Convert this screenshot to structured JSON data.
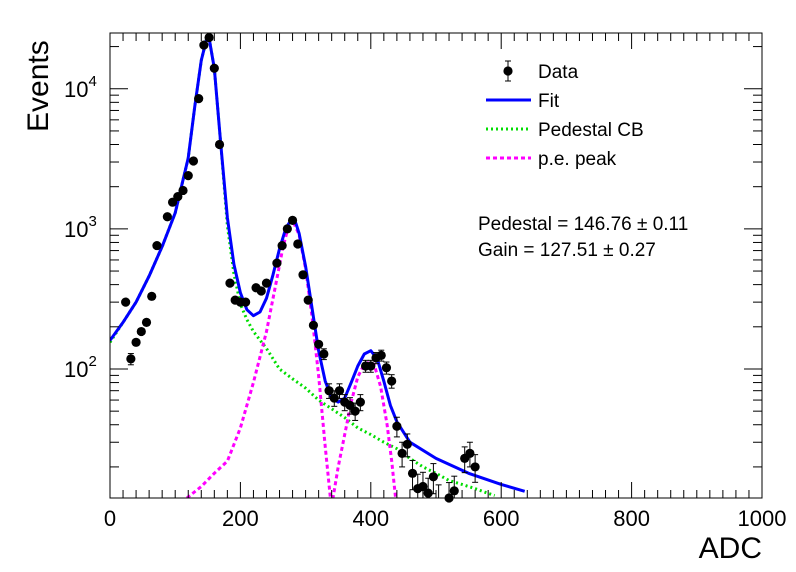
{
  "chart_data": {
    "type": "line",
    "xlabel": "ADC",
    "ylabel": "Events",
    "xlim": [
      0,
      1000
    ],
    "ylim": [
      12,
      25000
    ],
    "y_scale": "log",
    "x_ticks": [
      {
        "value": 0,
        "label": "0"
      },
      {
        "value": 200,
        "label": "200"
      },
      {
        "value": 400,
        "label": "400"
      },
      {
        "value": 600,
        "label": "600"
      },
      {
        "value": 800,
        "label": "800"
      },
      {
        "value": 1000,
        "label": "1000"
      }
    ],
    "y_ticks": [
      {
        "value": 100,
        "base": "10",
        "exp": "2"
      },
      {
        "value": 1000,
        "base": "10",
        "exp": "3"
      },
      {
        "value": 10000,
        "base": "10",
        "exp": "4"
      }
    ],
    "grid": false,
    "legend_position": "top-right",
    "legend": [
      {
        "label": "Data",
        "style": "marker",
        "color": "#000000"
      },
      {
        "label": "Fit",
        "style": "solid",
        "color": "#0000ff"
      },
      {
        "label": "Pedestal CB",
        "style": "dotted",
        "color": "#00dd00"
      },
      {
        "label": "p.e. peak",
        "style": "dashed",
        "color": "#ff00ff"
      }
    ],
    "annotations": [
      "Pedestal = 146.76 ± 0.11",
      "Gain = 127.51 ± 0.27"
    ],
    "series": [
      {
        "name": "Data",
        "kind": "points",
        "color": "#000000",
        "points": [
          [
            24,
            300
          ],
          [
            32,
            118
          ],
          [
            40,
            155
          ],
          [
            48,
            185
          ],
          [
            56,
            215
          ],
          [
            64,
            330
          ],
          [
            72,
            760
          ],
          [
            88,
            1220
          ],
          [
            96,
            1550
          ],
          [
            104,
            1700
          ],
          [
            112,
            1880
          ],
          [
            120,
            2400
          ],
          [
            128,
            3050
          ],
          [
            136,
            8500
          ],
          [
            144,
            20500
          ],
          [
            152,
            23200
          ],
          [
            160,
            14000
          ],
          [
            168,
            4000
          ],
          [
            184,
            410
          ],
          [
            192,
            310
          ],
          [
            200,
            300
          ],
          [
            208,
            300
          ],
          [
            224,
            380
          ],
          [
            232,
            360
          ],
          [
            240,
            410
          ],
          [
            256,
            570
          ],
          [
            264,
            760
          ],
          [
            272,
            1000
          ],
          [
            280,
            1150
          ],
          [
            288,
            780
          ],
          [
            296,
            470
          ],
          [
            304,
            310
          ],
          [
            312,
            205
          ],
          [
            320,
            150
          ],
          [
            328,
            128
          ],
          [
            336,
            70
          ],
          [
            344,
            62
          ],
          [
            352,
            70
          ],
          [
            360,
            58
          ],
          [
            368,
            55
          ],
          [
            376,
            50
          ],
          [
            384,
            58
          ],
          [
            392,
            105
          ],
          [
            400,
            105
          ],
          [
            408,
            120
          ],
          [
            416,
            125
          ],
          [
            424,
            102
          ],
          [
            432,
            82
          ],
          [
            440,
            39
          ],
          [
            448,
            25
          ],
          [
            456,
            29
          ],
          [
            464,
            18
          ],
          [
            472,
            14
          ],
          [
            480,
            14.5
          ],
          [
            488,
            13
          ],
          [
            496,
            17
          ],
          [
            504,
            11.5
          ],
          [
            520,
            12
          ],
          [
            528,
            13.5
          ],
          [
            544,
            23
          ],
          [
            552,
            25
          ],
          [
            560,
            20
          ]
        ]
      },
      {
        "name": "Fit",
        "kind": "line",
        "color": "#0000ff",
        "points": [
          [
            0,
            160
          ],
          [
            20,
            215
          ],
          [
            40,
            300
          ],
          [
            60,
            460
          ],
          [
            80,
            750
          ],
          [
            100,
            1300
          ],
          [
            120,
            3200
          ],
          [
            130,
            7500
          ],
          [
            140,
            16000
          ],
          [
            148,
            22500
          ],
          [
            152,
            23000
          ],
          [
            160,
            14000
          ],
          [
            170,
            4000
          ],
          [
            180,
            1200
          ],
          [
            190,
            560
          ],
          [
            200,
            350
          ],
          [
            210,
            265
          ],
          [
            220,
            240
          ],
          [
            230,
            255
          ],
          [
            240,
            320
          ],
          [
            250,
            470
          ],
          [
            260,
            720
          ],
          [
            270,
            1020
          ],
          [
            278,
            1160
          ],
          [
            285,
            1100
          ],
          [
            290,
            930
          ],
          [
            300,
            540
          ],
          [
            310,
            270
          ],
          [
            320,
            135
          ],
          [
            330,
            82
          ],
          [
            340,
            62
          ],
          [
            350,
            58
          ],
          [
            360,
            62
          ],
          [
            370,
            80
          ],
          [
            380,
            105
          ],
          [
            390,
            128
          ],
          [
            400,
            135
          ],
          [
            410,
            118
          ],
          [
            420,
            82
          ],
          [
            430,
            55
          ],
          [
            440,
            42
          ],
          [
            460,
            30
          ],
          [
            500,
            23
          ],
          [
            550,
            18
          ],
          [
            600,
            15
          ],
          [
            636,
            13.4
          ]
        ]
      },
      {
        "name": "Pedestal CB",
        "kind": "line",
        "color": "#00dd00",
        "points": [
          [
            0,
            155
          ],
          [
            20,
            215
          ],
          [
            40,
            300
          ],
          [
            60,
            460
          ],
          [
            80,
            750
          ],
          [
            100,
            1300
          ],
          [
            120,
            3200
          ],
          [
            130,
            7500
          ],
          [
            140,
            16000
          ],
          [
            148,
            22500
          ],
          [
            152,
            23000
          ],
          [
            160,
            14000
          ],
          [
            170,
            4000
          ],
          [
            180,
            1050
          ],
          [
            190,
            480
          ],
          [
            200,
            290
          ],
          [
            210,
            225
          ],
          [
            220,
            185
          ],
          [
            240,
            140
          ],
          [
            260,
            100
          ],
          [
            280,
            85
          ],
          [
            300,
            73
          ],
          [
            320,
            60
          ],
          [
            340,
            52
          ],
          [
            360,
            45
          ],
          [
            380,
            38
          ],
          [
            400,
            34
          ],
          [
            420,
            30
          ],
          [
            440,
            27
          ],
          [
            460,
            23
          ],
          [
            480,
            20
          ],
          [
            500,
            18
          ],
          [
            520,
            16
          ],
          [
            540,
            15
          ],
          [
            560,
            14
          ],
          [
            575,
            13.2
          ],
          [
            590,
            12.5
          ]
        ]
      },
      {
        "name": "p.e. peak",
        "kind": "line",
        "color": "#ff00ff",
        "points": [
          [
            118,
            12
          ],
          [
            140,
            14.5
          ],
          [
            160,
            18
          ],
          [
            180,
            22
          ],
          [
            200,
            38
          ],
          [
            220,
            80
          ],
          [
            240,
            185
          ],
          [
            255,
            420
          ],
          [
            265,
            730
          ],
          [
            275,
            1100
          ],
          [
            280,
            1150
          ],
          [
            290,
            910
          ],
          [
            300,
            520
          ],
          [
            310,
            235
          ],
          [
            320,
            90
          ],
          [
            330,
            28
          ],
          [
            338,
            12
          ],
          [
            342,
            12
          ],
          [
            350,
            20
          ],
          [
            360,
            34
          ],
          [
            370,
            58
          ],
          [
            380,
            88
          ],
          [
            390,
            108
          ],
          [
            398,
            112
          ],
          [
            405,
            108
          ],
          [
            415,
            75
          ],
          [
            425,
            40
          ],
          [
            432,
            22
          ],
          [
            438,
            12
          ]
        ]
      }
    ]
  }
}
